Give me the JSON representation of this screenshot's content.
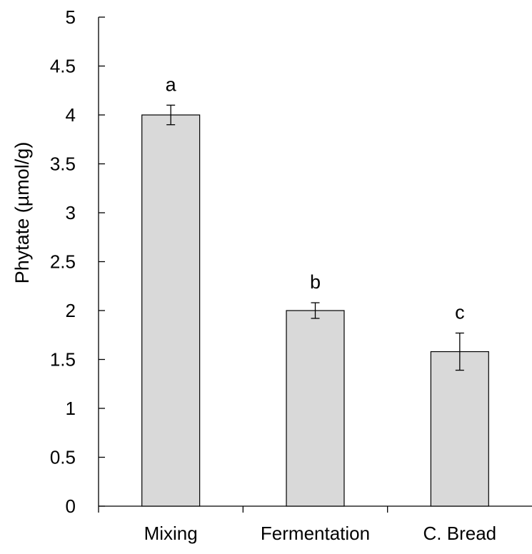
{
  "chart_data": {
    "type": "bar",
    "title": "",
    "xlabel": "",
    "ylabel": "Phytate  (µmol/g)",
    "categories": [
      "Mixing",
      "Fermentation",
      "C. Bread"
    ],
    "values": [
      4.0,
      2.0,
      1.58
    ],
    "error": [
      0.1,
      0.08,
      0.19
    ],
    "significance_letters": [
      "a",
      "b",
      "c"
    ],
    "ylim": [
      0,
      5
    ],
    "yticks": [
      0,
      0.5,
      1,
      1.5,
      2,
      2.5,
      3,
      3.5,
      4,
      4.5,
      5
    ],
    "ytick_labels": [
      "0",
      "0.5",
      "1",
      "1.5",
      "2",
      "2.5",
      "3",
      "3.5",
      "4",
      "4.5",
      "5"
    ],
    "grid": false,
    "legend": "none",
    "bar_color": "#d9d9d9",
    "bar_edge_color": "#000000"
  }
}
